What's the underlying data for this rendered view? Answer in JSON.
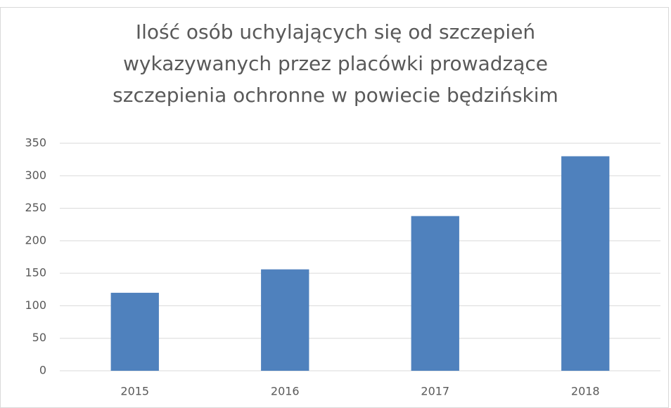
{
  "chart_data": {
    "type": "bar",
    "title": [
      "Ilość osób uchylających się od szczepień",
      "wykazywanych przez placówki prowadzące",
      "szczepienia ochronne w powiecie będzińskim"
    ],
    "categories": [
      "2015",
      "2016",
      "2017",
      "2018"
    ],
    "values": [
      120,
      156,
      238,
      330
    ],
    "color": "#4f81bd",
    "ylim": [
      0,
      350
    ],
    "yticks": [
      0,
      50,
      100,
      150,
      200,
      250,
      300,
      350
    ],
    "grid": true
  }
}
